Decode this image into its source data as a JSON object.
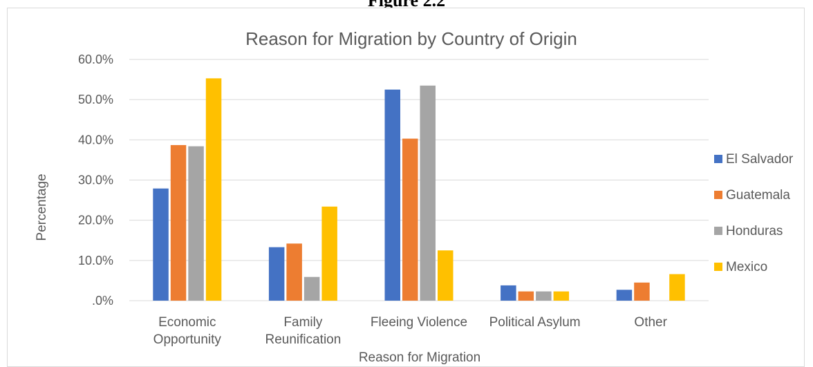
{
  "figure_heading": "Figure 2.2",
  "chart_data": {
    "type": "bar",
    "title": "Reason for Migration by Country of Origin",
    "xlabel": "Reason for Migration",
    "ylabel": "Percentage",
    "categories": [
      [
        "Economic",
        "Opportunity"
      ],
      [
        "Family",
        "Reunification"
      ],
      [
        "Fleeing Violence"
      ],
      [
        "Political Asylum"
      ],
      [
        "Other"
      ]
    ],
    "ylim": [
      0,
      60
    ],
    "yticks": [
      0,
      10,
      20,
      30,
      40,
      50,
      60
    ],
    "ytick_labels": [
      ".0%",
      "10.0%",
      "20.0%",
      "30.0%",
      "40.0%",
      "50.0%",
      "60.0%"
    ],
    "grid": true,
    "legend_position": "right",
    "series": [
      {
        "name": "El Salvador",
        "color": "#4472C4",
        "values": [
          27.9,
          13.3,
          52.5,
          3.8,
          2.7
        ]
      },
      {
        "name": "Guatemala",
        "color": "#ED7D31",
        "values": [
          38.7,
          14.2,
          40.3,
          2.3,
          4.5
        ]
      },
      {
        "name": "Honduras",
        "color": "#A5A5A5",
        "values": [
          38.4,
          5.9,
          53.5,
          2.3,
          0
        ]
      },
      {
        "name": "Mexico",
        "color": "#FFC000",
        "values": [
          55.3,
          23.4,
          12.5,
          2.3,
          6.6
        ]
      }
    ]
  }
}
